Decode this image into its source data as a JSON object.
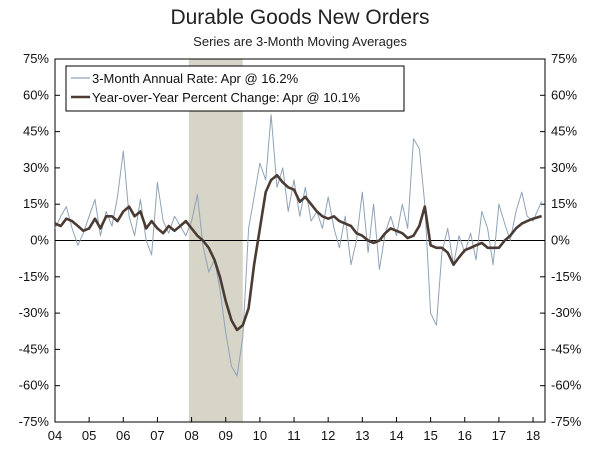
{
  "chart_data": {
    "type": "line",
    "title": "Durable Goods New Orders",
    "subtitle": "Series are 3-Month Moving Averages",
    "ylim": [
      -75,
      75
    ],
    "xlim": [
      2004.0,
      2018.35
    ],
    "y_ticks": [
      "75%",
      "60%",
      "45%",
      "30%",
      "15%",
      "0%",
      "-15%",
      "-30%",
      "-45%",
      "-60%",
      "-75%"
    ],
    "x_ticks": [
      "04",
      "05",
      "06",
      "07",
      "08",
      "09",
      "10",
      "11",
      "12",
      "13",
      "14",
      "15",
      "16",
      "17",
      "18"
    ],
    "recession": [
      2007.92,
      2009.5
    ],
    "legend_position": "top-left",
    "series": [
      {
        "name": "3-Month Annual Rate: Apr @ 16.2%",
        "color": "#8fa3b8",
        "style": "thin",
        "x": [
          2004.0,
          2004.17,
          2004.33,
          2004.5,
          2004.67,
          2004.83,
          2005.0,
          2005.17,
          2005.33,
          2005.5,
          2005.67,
          2005.83,
          2006.0,
          2006.17,
          2006.33,
          2006.5,
          2006.67,
          2006.83,
          2007.0,
          2007.17,
          2007.33,
          2007.5,
          2007.67,
          2007.83,
          2008.0,
          2008.17,
          2008.33,
          2008.5,
          2008.67,
          2008.83,
          2009.0,
          2009.17,
          2009.33,
          2009.5,
          2009.67,
          2009.83,
          2010.0,
          2010.17,
          2010.33,
          2010.5,
          2010.67,
          2010.83,
          2011.0,
          2011.17,
          2011.33,
          2011.5,
          2011.67,
          2011.83,
          2012.0,
          2012.17,
          2012.33,
          2012.5,
          2012.67,
          2012.83,
          2013.0,
          2013.17,
          2013.33,
          2013.5,
          2013.67,
          2013.83,
          2014.0,
          2014.17,
          2014.33,
          2014.5,
          2014.67,
          2014.83,
          2015.0,
          2015.17,
          2015.33,
          2015.5,
          2015.67,
          2015.83,
          2016.0,
          2016.17,
          2016.33,
          2016.5,
          2016.67,
          2016.83,
          2017.0,
          2017.17,
          2017.33,
          2017.5,
          2017.67,
          2017.83,
          2018.0,
          2018.25
        ],
        "values": [
          5,
          10,
          14,
          5,
          -2,
          3,
          10,
          17,
          2,
          12,
          6,
          18,
          37,
          10,
          2,
          17,
          0,
          -6,
          24,
          8,
          3,
          10,
          6,
          2,
          8,
          19,
          -2,
          -13,
          -8,
          -20,
          -38,
          -52,
          -56,
          -40,
          5,
          18,
          32,
          25,
          52,
          22,
          30,
          12,
          25,
          10,
          22,
          8,
          12,
          5,
          18,
          5,
          -3,
          10,
          -10,
          0,
          20,
          -5,
          15,
          -12,
          3,
          10,
          2,
          15,
          5,
          42,
          38,
          15,
          -30,
          -35,
          -5,
          5,
          -10,
          2,
          -5,
          3,
          -8,
          12,
          5,
          -10,
          15,
          7,
          0,
          12,
          20,
          10,
          8,
          16.2
        ]
      },
      {
        "name": "Year-over-Year Percent Change: Apr @ 10.1%",
        "color": "#4a3b34",
        "style": "thick",
        "x": [
          2004.0,
          2004.17,
          2004.33,
          2004.5,
          2004.67,
          2004.83,
          2005.0,
          2005.17,
          2005.33,
          2005.5,
          2005.67,
          2005.83,
          2006.0,
          2006.17,
          2006.33,
          2006.5,
          2006.67,
          2006.83,
          2007.0,
          2007.17,
          2007.33,
          2007.5,
          2007.67,
          2007.83,
          2008.0,
          2008.17,
          2008.33,
          2008.5,
          2008.67,
          2008.83,
          2009.0,
          2009.17,
          2009.33,
          2009.5,
          2009.67,
          2009.83,
          2010.0,
          2010.17,
          2010.33,
          2010.5,
          2010.67,
          2010.83,
          2011.0,
          2011.17,
          2011.33,
          2011.5,
          2011.67,
          2011.83,
          2012.0,
          2012.17,
          2012.33,
          2012.5,
          2012.67,
          2012.83,
          2013.0,
          2013.17,
          2013.33,
          2013.5,
          2013.67,
          2013.83,
          2014.0,
          2014.17,
          2014.33,
          2014.5,
          2014.67,
          2014.83,
          2015.0,
          2015.17,
          2015.33,
          2015.5,
          2015.67,
          2015.83,
          2016.0,
          2016.17,
          2016.33,
          2016.5,
          2016.67,
          2016.83,
          2017.0,
          2017.17,
          2017.33,
          2017.5,
          2017.67,
          2017.83,
          2018.0,
          2018.25
        ],
        "values": [
          7,
          6,
          9,
          8,
          6,
          4,
          5,
          9,
          5,
          10,
          10,
          8,
          12,
          14,
          10,
          12,
          5,
          8,
          5,
          3,
          6,
          4,
          6,
          8,
          5,
          2,
          0,
          -3,
          -8,
          -15,
          -25,
          -33,
          -37,
          -35,
          -28,
          -10,
          5,
          20,
          25,
          27,
          24,
          22,
          21,
          16,
          18,
          15,
          12,
          10,
          9,
          10,
          8,
          7,
          6,
          3,
          2,
          0,
          -1,
          0,
          3,
          5,
          4,
          3,
          1,
          2,
          6,
          14,
          -2,
          -3,
          -3,
          -5,
          -10,
          -7,
          -4,
          -3,
          -2,
          -1,
          -3,
          -3,
          -3,
          0,
          2,
          5,
          7,
          8,
          9,
          10.1
        ]
      }
    ]
  }
}
